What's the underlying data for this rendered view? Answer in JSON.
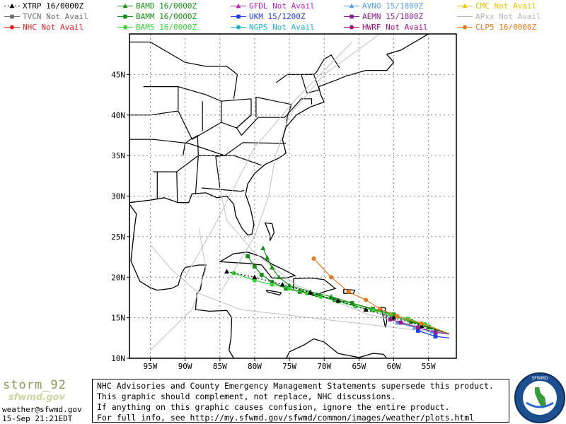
{
  "legend": [
    {
      "model": "XTRP",
      "status": "16/0000Z",
      "color": "#000000",
      "marker": "triangle",
      "dash": true
    },
    {
      "model": "BAMD",
      "status": "16/0000Z",
      "color": "#1a8f1a",
      "marker": "triangle",
      "dash": false
    },
    {
      "model": "GFDL",
      "status": "Not Avail",
      "color": "#c020c0",
      "marker": "triangle",
      "dash": false
    },
    {
      "model": "AVNO",
      "status": "15/1800Z",
      "color": "#5aa0e6",
      "marker": "triangle",
      "dash": false
    },
    {
      "model": "CMC",
      "status": "Not Avail",
      "color": "#e6c200",
      "marker": "triangle",
      "dash": false
    },
    {
      "model": "TVCN",
      "status": "Not Avail",
      "color": "#6e6e6e",
      "marker": "square",
      "dash": false
    },
    {
      "model": "BAMM",
      "status": "16/0000Z",
      "color": "#1a8f1a",
      "marker": "square",
      "dash": false
    },
    {
      "model": "UKM",
      "status": "15/1200Z",
      "color": "#2040e0",
      "marker": "square",
      "dash": false
    },
    {
      "model": "AEMN",
      "status": "15/1800Z",
      "color": "#8a2090",
      "marker": "square",
      "dash": false
    },
    {
      "model": "APxx",
      "status": "Not Avail",
      "color": "#b4b4b4",
      "marker": "none",
      "dash": false
    },
    {
      "model": "NHC",
      "status": "Not Avail",
      "color": "#e02020",
      "marker": "circle",
      "dash": false
    },
    {
      "model": "BAMS",
      "status": "16/0000Z",
      "color": "#3ad03a",
      "marker": "circle",
      "dash": false
    },
    {
      "model": "NGPS",
      "status": "Not Avail",
      "color": "#20b0c0",
      "marker": "circle",
      "dash": false
    },
    {
      "model": "HWRF",
      "status": "Not Avail",
      "color": "#a0107a",
      "marker": "circle",
      "dash": false
    },
    {
      "model": "CLP5",
      "status": "16/0000Z",
      "color": "#e07a20",
      "marker": "circle",
      "dash": false
    }
  ],
  "map": {
    "lon_labels": [
      "95W",
      "90W",
      "85W",
      "80W",
      "75W",
      "70W",
      "65W",
      "60W",
      "55W"
    ],
    "lat_labels": [
      "10N",
      "15N",
      "20N",
      "25N",
      "30N",
      "35N",
      "40N",
      "45N"
    ],
    "lon_values": [
      -95,
      -90,
      -85,
      -80,
      -75,
      -70,
      -65,
      -60,
      -55
    ],
    "lat_values": [
      10,
      15,
      20,
      25,
      30,
      35,
      40,
      45
    ],
    "lon_range": [
      -98,
      -51
    ],
    "lat_range": [
      10,
      50
    ]
  },
  "tracks": [
    {
      "model": "BAMD",
      "color": "#1a8f1a",
      "marker": "triangle",
      "points": [
        [
          -52,
          13
        ],
        [
          -55,
          13.8
        ],
        [
          -57.5,
          14.5
        ],
        [
          -60,
          15.2
        ],
        [
          -63,
          16
        ],
        [
          -66,
          16.8
        ],
        [
          -69,
          17.6
        ],
        [
          -72,
          18.2
        ],
        [
          -75,
          19
        ],
        [
          -76.5,
          20
        ],
        [
          -77.5,
          21.2
        ],
        [
          -78.2,
          22.4
        ],
        [
          -78.8,
          23.6
        ]
      ]
    },
    {
      "model": "BAMM",
      "color": "#1a8f1a",
      "marker": "square",
      "points": [
        [
          -52,
          13
        ],
        [
          -55,
          13.9
        ],
        [
          -57.5,
          14.6
        ],
        [
          -60,
          15.4
        ],
        [
          -63,
          16.1
        ],
        [
          -66,
          16.8
        ],
        [
          -68.5,
          17.2
        ],
        [
          -71,
          17.8
        ],
        [
          -73.5,
          18.2
        ],
        [
          -75.5,
          18.6
        ],
        [
          -77.5,
          19.4
        ],
        [
          -79,
          20.3
        ],
        [
          -80,
          21.3
        ],
        [
          -81,
          22.6
        ]
      ]
    },
    {
      "model": "BAMS",
      "color": "#3ad03a",
      "marker": "circle",
      "points": [
        [
          -52,
          13
        ],
        [
          -55.5,
          14.2
        ],
        [
          -58,
          14.9
        ],
        [
          -60.5,
          15.4
        ],
        [
          -63,
          15.9
        ],
        [
          -65.5,
          16.4
        ],
        [
          -68,
          17
        ],
        [
          -70.5,
          17.6
        ],
        [
          -72.5,
          18
        ],
        [
          -75,
          18.6
        ],
        [
          -77.5,
          19.1
        ],
        [
          -80,
          19.6
        ],
        [
          -83,
          20.5
        ]
      ]
    },
    {
      "model": "XTRP",
      "color": "#000000",
      "marker": "triangle",
      "points": [
        [
          -52,
          13
        ],
        [
          -56,
          14
        ],
        [
          -60,
          15
        ],
        [
          -64,
          16
        ],
        [
          -68,
          17.1
        ],
        [
          -72,
          18.1
        ],
        [
          -76,
          19.1
        ],
        [
          -80,
          20
        ],
        [
          -84,
          20.7
        ]
      ],
      "dash": true
    },
    {
      "model": "CLP5",
      "color": "#e07a20",
      "marker": "circle",
      "points": [
        [
          -52,
          13
        ],
        [
          -56,
          14.3
        ],
        [
          -59.5,
          15.2
        ],
        [
          -62,
          16.1
        ],
        [
          -64,
          17.2
        ],
        [
          -66.5,
          18.2
        ],
        [
          -69,
          20
        ],
        [
          -71.5,
          22.3
        ]
      ]
    },
    {
      "model": "AVNO",
      "color": "#5aa0e6",
      "marker": "triangle",
      "points": [
        [
          -52,
          13
        ],
        [
          -54.5,
          13.3
        ],
        [
          -57,
          13.8
        ],
        [
          -59.5,
          14.4
        ]
      ]
    },
    {
      "model": "UKM",
      "color": "#2040e0",
      "marker": "square",
      "points": [
        [
          -52,
          12.5
        ],
        [
          -54,
          12.7
        ],
        [
          -56.5,
          13.4
        ]
      ]
    },
    {
      "model": "AEMN",
      "color": "#8a2090",
      "marker": "square",
      "points": [
        [
          -52,
          13
        ],
        [
          -54,
          13.2
        ],
        [
          -56.5,
          13.8
        ],
        [
          -59,
          14.4
        ],
        [
          -60.5,
          14.8
        ]
      ]
    }
  ],
  "footer": {
    "brand": "storm_92",
    "brand_sub": "sfwmd.gov",
    "email": "weather@sfwmd.gov",
    "timestamp": "15-Sep 21:21EDT",
    "disclaimer": [
      "NHC Advisories and County Emergency Management Statements supersede this product.",
      "This graphic should complement, not replace, NHC discussions.",
      "If anything on this graphic causes confusion, ignore the entire product.",
      "For full info, see  http://my.sfwmd.gov/sfwmd/common/images/weather/plots.html"
    ],
    "seal_text": "SOUTH FLORIDA WATER MANAGEMENT DISTRICT"
  }
}
